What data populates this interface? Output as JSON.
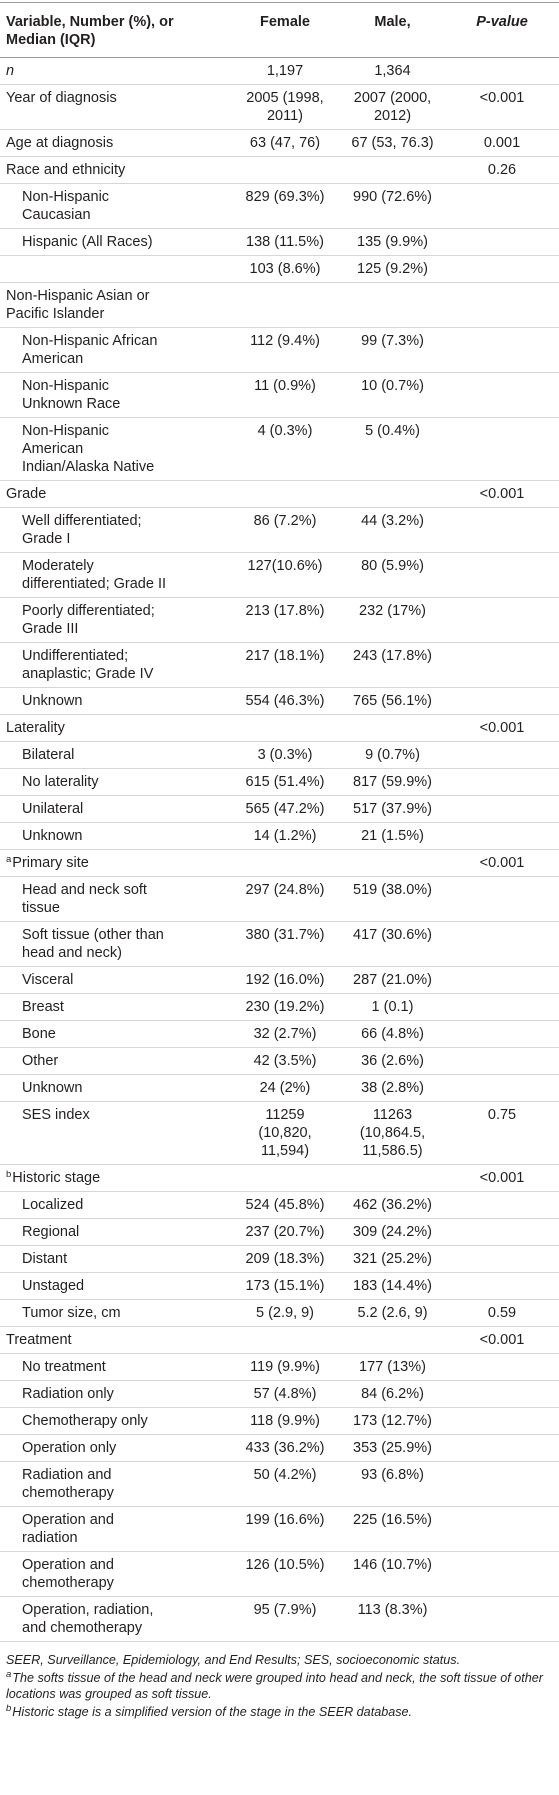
{
  "header": {
    "variable": "Variable, Number (%), or Median (IQR)",
    "female": "Female",
    "male": "Male,",
    "p": "P-value"
  },
  "sections": [
    {
      "label": "n",
      "female": "1,197",
      "male": "1,364"
    },
    {
      "label": "Year of diagnosis",
      "female": "2005 (1998, 2011)",
      "male": "2007 (2000, 2012)",
      "p": "<0.001"
    },
    {
      "label": "Age at diagnosis",
      "female": "63 (47, 76)",
      "male": "67 (53, 76.3)",
      "p": "0.001"
    },
    {
      "label": "Race and ethnicity",
      "p": "0.26",
      "items": [
        {
          "label": "Non-Hispanic Caucasian",
          "female": "829 (69.3%)",
          "male": "990 (72.6%)"
        },
        {
          "label": "Hispanic (All Races)",
          "female": "138 (11.5%)",
          "male": "135 (9.9%)"
        },
        {
          "female": "103 (8.6%)",
          "male": "125 (9.2%)"
        }
      ]
    },
    {
      "label": "Non-Hispanic Asian or Pacific Islander",
      "items": [
        {
          "label": "Non-Hispanic African American",
          "female": "112 (9.4%)",
          "male": "99 (7.3%)"
        },
        {
          "label": "Non-Hispanic Unknown Race",
          "female": "11 (0.9%)",
          "male": "10 (0.7%)"
        },
        {
          "label": "Non-Hispanic American Indian/Alaska Native",
          "female": "4 (0.3%)",
          "male": "5 (0.4%)"
        }
      ]
    },
    {
      "label": "Grade",
      "p": "<0.001",
      "items": [
        {
          "label": "Well differentiated; Grade I",
          "female": "86 (7.2%)",
          "male": "44 (3.2%)"
        },
        {
          "label": "Moderately differentiated; Grade II",
          "female": "127(10.6%)",
          "male": "80 (5.9%)"
        },
        {
          "label": "Poorly differentiated; Grade III",
          "female": "213 (17.8%)",
          "male": "232 (17%)"
        },
        {
          "label": "Undifferentiated; anaplastic; Grade IV",
          "female": "217 (18.1%)",
          "male": "243 (17.8%)"
        },
        {
          "label": "Unknown",
          "female": "554 (46.3%)",
          "male": "765 (56.1%)"
        }
      ]
    },
    {
      "label": "Laterality",
      "p": "<0.001",
      "items": [
        {
          "label": "Bilateral",
          "female": "3 (0.3%)",
          "male": "9 (0.7%)"
        },
        {
          "label": "No laterality",
          "female": "615 (51.4%)",
          "male": "817 (59.9%)"
        },
        {
          "label": "Unilateral",
          "female": "565 (47.2%)",
          "male": "517 (37.9%)"
        },
        {
          "label": "Unknown",
          "female": "14 (1.2%)",
          "male": "21 (1.5%)"
        }
      ]
    },
    {
      "sup": "a",
      "label": "Primary site",
      "p": "<0.001",
      "items": [
        {
          "label": "Head and neck soft tissue",
          "female": "297 (24.8%)",
          "male": "519 (38.0%)"
        },
        {
          "label": "Soft tissue (other than head and neck)",
          "female": "380 (31.7%)",
          "male": "417 (30.6%)"
        },
        {
          "label": "Visceral",
          "female": "192 (16.0%)",
          "male": "287 (21.0%)"
        },
        {
          "label": "Breast",
          "female": "230 (19.2%)",
          "male": "1 (0.1)"
        },
        {
          "label": "Bone",
          "female": "32 (2.7%)",
          "male": "66 (4.8%)"
        },
        {
          "label": "Other",
          "female": "42 (3.5%)",
          "male": "36 (2.6%)"
        },
        {
          "label": "Unknown",
          "female": "24 (2%)",
          "male": "38 (2.8%)"
        },
        {
          "label": "SES index",
          "female": "11259 (10,820, 11,594)",
          "male": "11263 (10,864.5, 11,586.5)",
          "p": "0.75"
        }
      ]
    },
    {
      "sup": "b",
      "label": "Historic stage",
      "p": "<0.001",
      "items": [
        {
          "label": "Localized",
          "female": "524 (45.8%)",
          "male": "462 (36.2%)"
        },
        {
          "label": "Regional",
          "female": "237 (20.7%)",
          "male": "309 (24.2%)"
        },
        {
          "label": "Distant",
          "female": "209 (18.3%)",
          "male": "321 (25.2%)"
        },
        {
          "label": "Unstaged",
          "female": "173 (15.1%)",
          "male": "183 (14.4%)"
        },
        {
          "label": "Tumor size, cm",
          "female": "5 (2.9, 9)",
          "male": "5.2 (2.6, 9)",
          "p": "0.59"
        }
      ]
    },
    {
      "label": "Treatment",
      "p": "<0.001",
      "items": [
        {
          "label": "No treatment",
          "female": "119 (9.9%)",
          "male": "177 (13%)"
        },
        {
          "label": "Radiation only",
          "female": "57 (4.8%)",
          "male": "84 (6.2%)"
        },
        {
          "label": "Chemotherapy only",
          "female": "118 (9.9%)",
          "male": "173 (12.7%)"
        },
        {
          "label": "Operation only",
          "female": "433 (36.2%)",
          "male": "353 (25.9%)"
        },
        {
          "label": "Radiation and chemotherapy",
          "female": "50 (4.2%)",
          "male": "93 (6.8%)"
        },
        {
          "label": "Operation and radiation",
          "female": "199 (16.6%)",
          "male": "225 (16.5%)"
        },
        {
          "label": "Operation and chemotherapy",
          "female": "126 (10.5%)",
          "male": "146 (10.7%)"
        },
        {
          "label": "Operation, radiation, and chemotherapy",
          "female": "95 (7.9%)",
          "male": "113 (8.3%)"
        }
      ]
    }
  ],
  "footnotes": [
    {
      "text": "SEER, Surveillance, Epidemiology, and End Results; SES, socioeconomic status."
    },
    {
      "sup": "a",
      "text": "The softs tissue of the head and neck were grouped into head and neck, the soft tissue of other locations was grouped as soft tissue."
    },
    {
      "sup": "b",
      "text": "Historic stage is a simplified version of the stage in the SEER database."
    }
  ]
}
